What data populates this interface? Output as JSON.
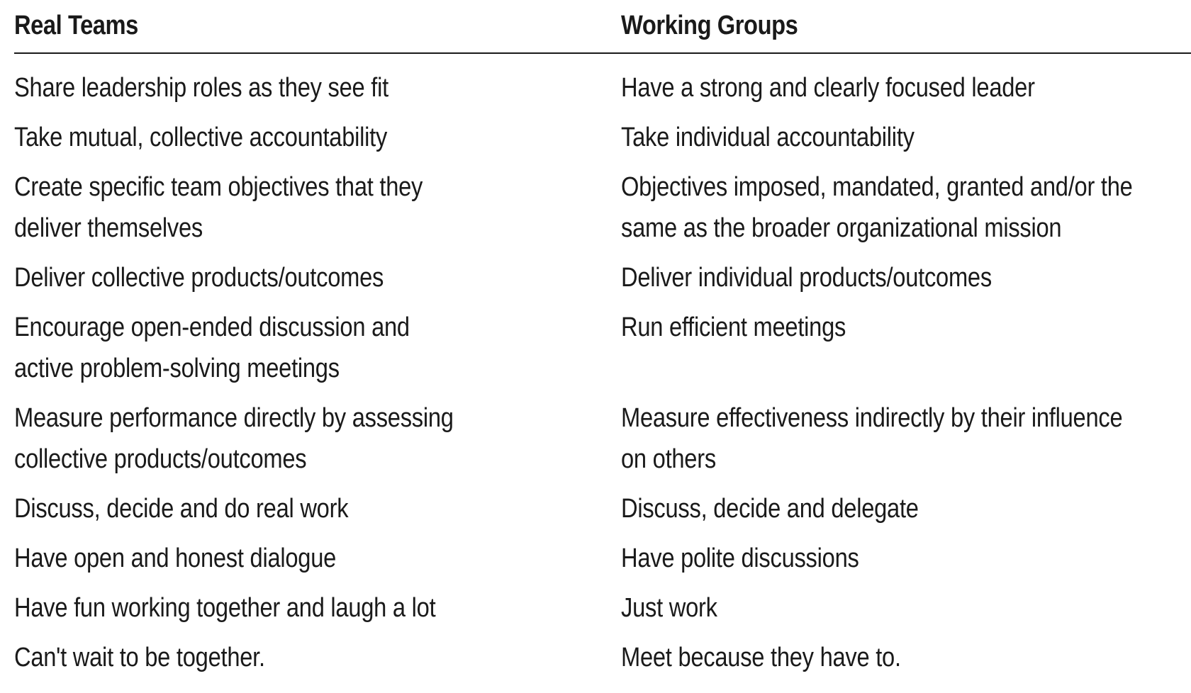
{
  "headers": {
    "left": "Real Teams",
    "right": "Working Groups"
  },
  "rows": [
    {
      "left": "Share leadership roles as they see fit",
      "right": "Have a strong and clearly focused leader"
    },
    {
      "left": "Take mutual, collective accountability",
      "right": "Take individual accountability"
    },
    {
      "left": "Create specific team objectives that they\ndeliver themselves",
      "right": "Objectives imposed, mandated, granted and/or the\nsame as the broader organizational mission"
    },
    {
      "left": "Deliver collective products/outcomes",
      "right": "Deliver individual products/outcomes"
    },
    {
      "left": "Encourage open-ended discussion and\nactive problem-solving meetings",
      "right": "Run efficient meetings"
    },
    {
      "left": "Measure performance directly by assessing\ncollective products/outcomes",
      "right": "Measure effectiveness indirectly by their influence\non others"
    },
    {
      "left": "Discuss, decide and do real work",
      "right": "Discuss, decide and delegate"
    },
    {
      "left": "Have open and honest dialogue",
      "right": "Have polite discussions"
    },
    {
      "left": "Have fun working together and laugh a lot",
      "right": "Just work"
    },
    {
      "left": "Can't wait to be together.",
      "right": "Meet because they have to."
    }
  ]
}
